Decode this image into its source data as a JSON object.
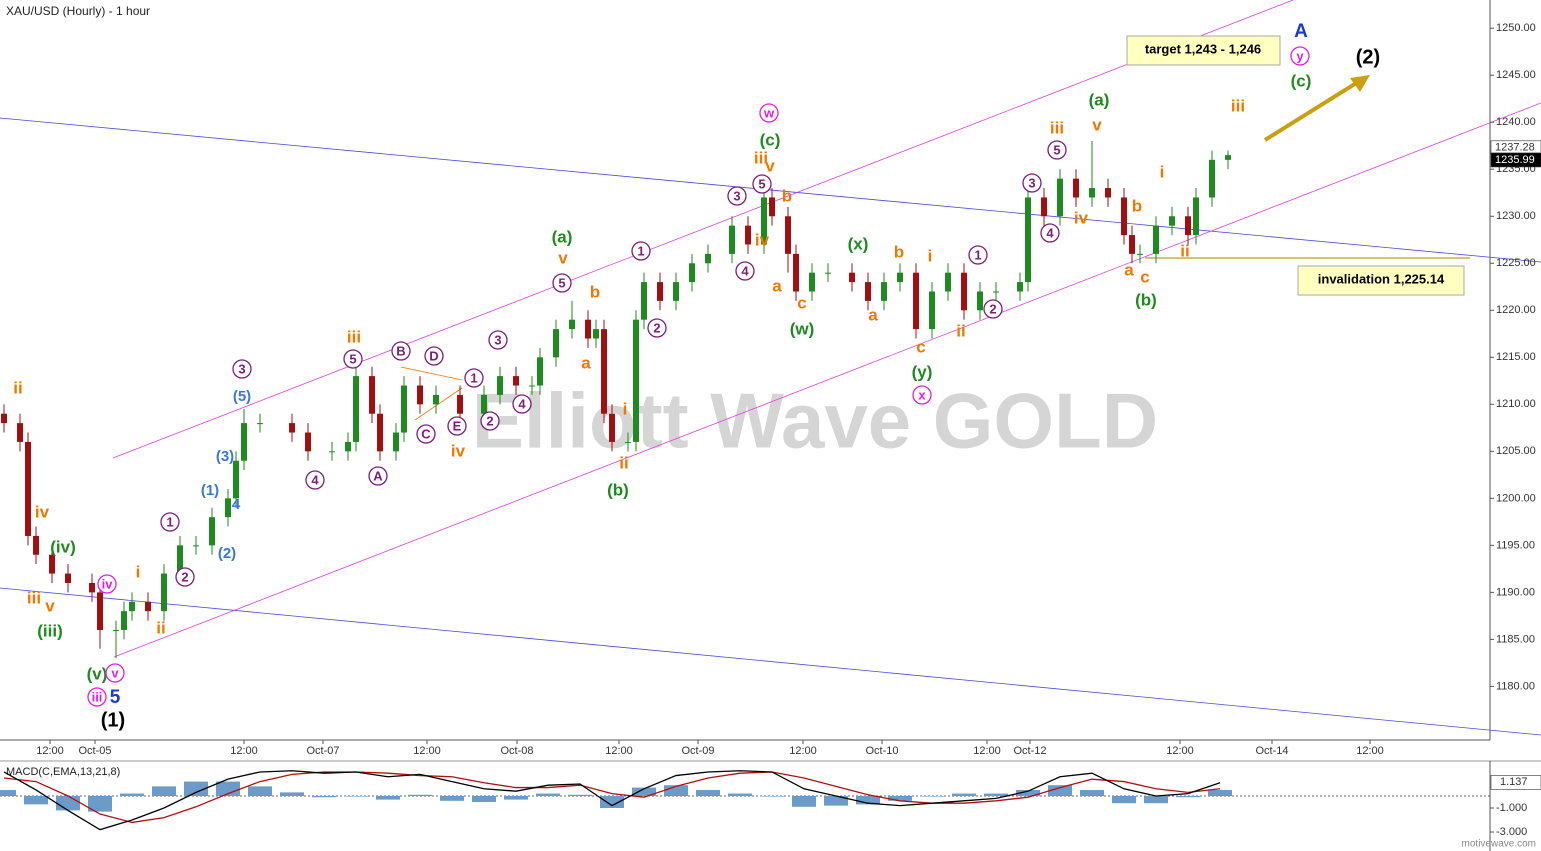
{
  "chart_data": [
    {
      "type": "candlestick",
      "title": "XAU/USD (Hourly) - 1 hour",
      "up_color": "#1f8a1f",
      "down_color": "#a01010",
      "x": [
        0,
        2,
        3,
        4,
        6,
        8,
        11,
        12,
        14,
        15,
        16,
        18,
        20,
        22,
        24,
        26,
        28,
        29,
        30,
        32,
        36,
        38,
        41,
        43,
        44,
        46,
        47,
        49,
        50,
        52,
        54,
        57,
        60,
        62,
        64,
        66,
        67,
        69,
        71,
        73,
        74,
        75,
        76,
        78,
        79,
        80,
        82,
        84,
        86,
        88,
        91,
        93,
        95,
        96,
        98,
        99,
        101,
        103,
        106,
        108,
        110,
        112,
        114,
        116,
        118,
        120,
        122,
        124,
        127,
        128,
        130,
        132,
        134,
        136,
        138,
        140,
        141,
        142,
        144,
        146,
        148,
        149,
        151,
        153
      ],
      "open": [
        1209,
        1208,
        1206,
        1196,
        1194,
        1192,
        1191,
        1190,
        1186,
        1186,
        1188,
        1189,
        1188,
        1192,
        1195,
        1195,
        1198,
        1200,
        1204,
        1208,
        1208,
        1207,
        1205,
        1205,
        1206,
        1213,
        1209,
        1205,
        1207,
        1212,
        1210,
        1211,
        1209,
        1211,
        1213,
        1212,
        1212,
        1215,
        1218,
        1219,
        1217,
        1218,
        1209,
        1206,
        1206,
        1219,
        1223,
        1221,
        1223,
        1225,
        1226,
        1229,
        1227,
        1232,
        1230,
        1226,
        1222,
        1224,
        1224,
        1223,
        1221,
        1223,
        1224,
        1218,
        1222,
        1224,
        1220,
        1222,
        1222,
        1223,
        1232,
        1230,
        1234,
        1232,
        1233,
        1232,
        1228,
        1226,
        1226,
        1229,
        1230,
        1228,
        1232,
        1236
      ],
      "high": [
        1210,
        1209,
        1207,
        1197,
        1195,
        1193,
        1192,
        1191,
        1187,
        1189,
        1190,
        1190,
        1193,
        1196,
        1196,
        1199,
        1201,
        1205,
        1209.5,
        1209,
        1209,
        1208,
        1206,
        1207,
        1214,
        1214,
        1210,
        1208,
        1213,
        1213,
        1212,
        1212,
        1212,
        1214,
        1214,
        1213,
        1216,
        1219,
        1221,
        1220,
        1219,
        1219,
        1210,
        1207,
        1220,
        1224,
        1224,
        1224,
        1226,
        1227,
        1230,
        1230,
        1233,
        1233,
        1231,
        1227,
        1225,
        1225,
        1225,
        1224,
        1224,
        1225,
        1225,
        1223,
        1225,
        1225,
        1223,
        1223,
        1224,
        1233,
        1233,
        1235,
        1235,
        1238,
        1234,
        1233,
        1229,
        1227,
        1230,
        1231,
        1231,
        1233,
        1237,
        1237
      ],
      "low": [
        1207,
        1205,
        1195,
        1193,
        1191,
        1190,
        1189,
        1184,
        1183,
        1185,
        1187,
        1187,
        1187,
        1191,
        1194,
        1194,
        1197,
        1199,
        1203,
        1207,
        1206,
        1204,
        1204,
        1204,
        1205,
        1208,
        1204,
        1204,
        1206,
        1209,
        1209,
        1208,
        1208,
        1210,
        1211,
        1211,
        1211,
        1214,
        1217,
        1216,
        1216,
        1208,
        1205,
        1205,
        1205,
        1218,
        1220,
        1220,
        1222,
        1224,
        1225,
        1226,
        1226,
        1229,
        1224,
        1221,
        1221,
        1223,
        1222,
        1220,
        1220,
        1222,
        1217,
        1217,
        1221,
        1219,
        1219,
        1221,
        1221,
        1222,
        1229,
        1229,
        1231,
        1231,
        1231,
        1227,
        1225,
        1225,
        1225,
        1228,
        1227,
        1227,
        1231,
        1235
      ],
      "close": [
        1208,
        1206,
        1196,
        1194,
        1192,
        1191,
        1190,
        1186,
        1186,
        1188,
        1189,
        1188,
        1192,
        1195,
        1195,
        1198,
        1200,
        1204,
        1208,
        1208,
        1207,
        1205,
        1205,
        1206,
        1213,
        1209,
        1205,
        1207,
        1212,
        1210,
        1211,
        1209,
        1211,
        1213,
        1212,
        1212,
        1215,
        1218,
        1219,
        1217,
        1218,
        1209,
        1206,
        1206,
        1219,
        1223,
        1221,
        1223,
        1225,
        1226,
        1229,
        1227,
        1232,
        1230,
        1226,
        1222,
        1224,
        1224,
        1223,
        1221,
        1223,
        1224,
        1218,
        1222,
        1224,
        1220,
        1222,
        1222,
        1223,
        1232,
        1230,
        1234,
        1232,
        1233,
        1232,
        1228,
        1226,
        1226,
        1229,
        1230,
        1228,
        1232,
        1236,
        1236.5
      ],
      "xlim": [
        -0.5,
        185.75
      ],
      "xticks": [
        {
          "value": 5.75,
          "label": "12:00"
        },
        {
          "value": 11.375,
          "label": "Oct-05"
        },
        {
          "value": 30,
          "label": "12:00"
        },
        {
          "value": 39.875,
          "label": "Oct-07"
        },
        {
          "value": 52.875,
          "label": "12:00"
        },
        {
          "value": 64.125,
          "label": "Oct-08"
        },
        {
          "value": 76.875,
          "label": "12:00"
        },
        {
          "value": 86.75,
          "label": "Oct-09"
        },
        {
          "value": 99.875,
          "label": "12:00"
        },
        {
          "value": 109.75,
          "label": "Oct-10"
        },
        {
          "value": 122.875,
          "label": "12:00"
        },
        {
          "value": 128.25,
          "label": "Oct-12"
        },
        {
          "value": 147,
          "label": "12:00"
        },
        {
          "value": 158.5,
          "label": "Oct-14"
        },
        {
          "value": 170.75,
          "label": "12:00"
        }
      ],
      "ylim": [
        1174.3,
        1253
      ],
      "yticks": [
        {
          "value": 1180,
          "label": "1180.00"
        },
        {
          "value": 1185,
          "label": "1185.00"
        },
        {
          "value": 1190,
          "label": "1190.00"
        },
        {
          "value": 1195,
          "label": "1195.00"
        },
        {
          "value": 1200,
          "label": "1200.00"
        },
        {
          "value": 1205,
          "label": "1205.00"
        },
        {
          "value": 1210,
          "label": "1210.00"
        },
        {
          "value": 1215,
          "label": "1215.00"
        },
        {
          "value": 1220,
          "label": "1220.00"
        },
        {
          "value": 1225,
          "label": "1225.00"
        },
        {
          "value": 1230,
          "label": "1230.00"
        },
        {
          "value": 1235,
          "label": "1235.00"
        },
        {
          "value": 1240,
          "label": "1240.00"
        },
        {
          "value": 1245,
          "label": "1245.00"
        },
        {
          "value": 1250,
          "label": "1250.00"
        }
      ],
      "price_tags": [
        1237.28,
        1235.99
      ],
      "boxes": [
        "target 1,243 - 1,246",
        "invalidation 1,225.14"
      ],
      "watermark": "Elliott Wave GOLD",
      "annotations": [
        {
          "color": "#f07800",
          "circled": false,
          "texts": [
            "ii",
            "iv",
            "iii",
            "v",
            "i",
            "ii",
            "iii",
            "iv",
            "v",
            "b",
            "a",
            "i",
            "ii",
            "iii",
            "v",
            "b",
            "iv",
            "a",
            "c",
            "b",
            "a",
            "i",
            "c",
            "ii",
            "iii",
            "v",
            "iv",
            "b",
            "a",
            "c",
            "i",
            "ii",
            "iii"
          ]
        },
        {
          "color": "#1f8a1f",
          "circled": false,
          "texts": [
            "(iv)",
            "(iii)",
            "(v)",
            "(a)",
            "(b)",
            "(c)",
            "(x)",
            "(w)",
            "(y)",
            "(a)",
            "(b)",
            "(c)"
          ]
        },
        {
          "color": "#7a1f7a",
          "circled": true,
          "texts": [
            "3",
            "5",
            "4",
            "B",
            "D",
            "C",
            "A",
            "E",
            "1",
            "2",
            "3",
            "4",
            "5",
            "1",
            "2",
            "1",
            "2",
            "3",
            "4",
            "5",
            "1",
            "2",
            "3",
            "4",
            "5"
          ]
        },
        {
          "color": "#3a78d8",
          "circled": false,
          "texts": [
            "(5)",
            "(3)",
            "(1)",
            "4",
            "(2)"
          ]
        },
        {
          "color": "#e020e0",
          "circled": true,
          "texts": [
            "iv",
            "v",
            "iii",
            "w",
            "x",
            "y"
          ]
        },
        {
          "color": "#1a3ad6",
          "circled": false,
          "texts": [
            "5",
            "A"
          ]
        },
        {
          "color": "#000000",
          "circled": false,
          "texts": [
            "(1)",
            "(2)"
          ]
        }
      ]
    },
    {
      "type": "macd",
      "title": "MACD(C,EMA,13,21,8)",
      "macd_color": "#000000",
      "signal_color": "#b01010",
      "hist_color": "#6b9bc8",
      "x": [
        0,
        4,
        8,
        12,
        16,
        20,
        24,
        28,
        32,
        36,
        40,
        44,
        48,
        52,
        56,
        60,
        64,
        68,
        72,
        76,
        80,
        84,
        88,
        92,
        96,
        100,
        104,
        108,
        112,
        116,
        120,
        124,
        128,
        132,
        136,
        140,
        144,
        148,
        152
      ],
      "macd": [
        2.0,
        0.5,
        -1.2,
        -2.8,
        -2.0,
        -1.0,
        0.3,
        1.4,
        2.0,
        2.1,
        1.9,
        2.0,
        1.6,
        1.8,
        1.2,
        0.6,
        0.4,
        0.9,
        1.0,
        -0.8,
        0.6,
        1.7,
        2.0,
        2.1,
        2.0,
        0.6,
        0.0,
        -0.6,
        -0.8,
        -0.6,
        -0.4,
        -0.2,
        0.4,
        1.6,
        1.9,
        0.6,
        0.0,
        0.2,
        1.1
      ],
      "signal": [
        1.5,
        1.2,
        0.0,
        -1.5,
        -2.2,
        -1.8,
        -0.9,
        0.2,
        1.2,
        1.8,
        2.0,
        2.0,
        1.9,
        1.7,
        1.6,
        1.1,
        0.7,
        0.7,
        0.9,
        0.2,
        -0.1,
        0.8,
        1.5,
        1.9,
        2.0,
        1.5,
        0.8,
        0.1,
        -0.4,
        -0.6,
        -0.6,
        -0.4,
        -0.1,
        0.7,
        1.4,
        1.2,
        0.6,
        0.3,
        0.6
      ],
      "hist": [
        0.5,
        -0.7,
        -1.2,
        -1.3,
        0.2,
        0.8,
        1.2,
        1.2,
        0.8,
        0.3,
        -0.1,
        0,
        -0.3,
        0.1,
        -0.4,
        -0.5,
        -0.3,
        0.2,
        0.1,
        -1.0,
        0.7,
        0.9,
        0.5,
        0.2,
        0,
        -0.9,
        -0.8,
        -0.7,
        -0.4,
        0,
        0.2,
        0.2,
        0.5,
        0.9,
        0.5,
        -0.6,
        -0.6,
        -0.1,
        0.5
      ],
      "ylim": [
        -4.08,
        2.83
      ],
      "yticks": [
        {
          "value": -1,
          "label": "-1.000"
        },
        {
          "value": -3,
          "label": "-3.000"
        }
      ],
      "last_value": 1.137
    }
  ],
  "footer": "motivewave.com"
}
